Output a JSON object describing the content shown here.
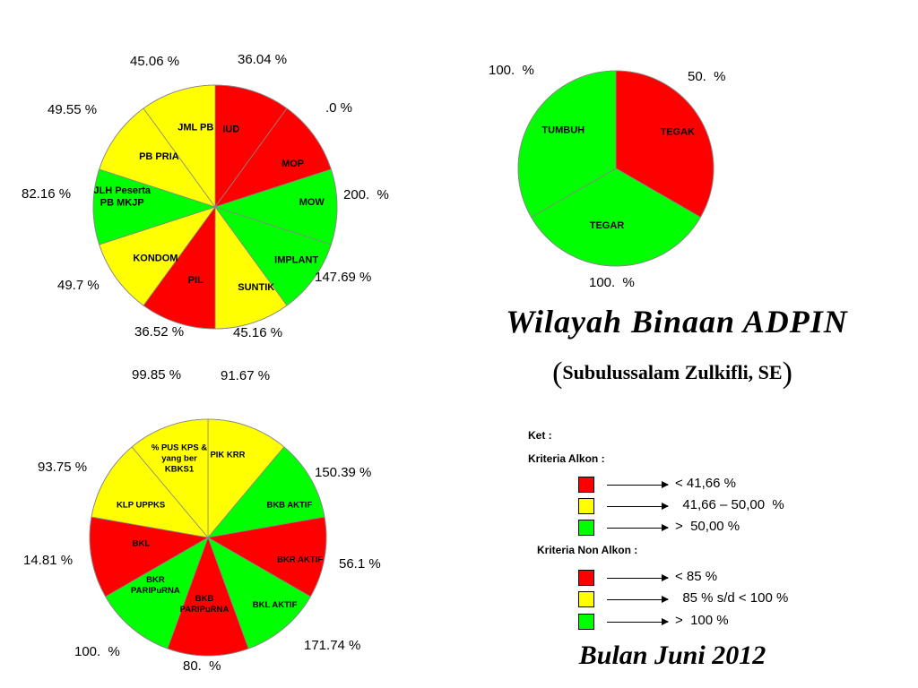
{
  "colors": {
    "red": "#ff0000",
    "yellow": "#ffff00",
    "green": "#00ff00",
    "outline": "#000000",
    "divider": "#888888"
  },
  "chart_data": [
    {
      "type": "pie",
      "title": "",
      "start_angle_deg": 0,
      "slices": [
        {
          "label": "IUD",
          "value": 1,
          "color": "red"
        },
        {
          "label": "MOP",
          "value": 1,
          "color": "red"
        },
        {
          "label": "MOW",
          "value": 1,
          "color": "green"
        },
        {
          "label": "IMPLANT",
          "value": 1,
          "color": "green"
        },
        {
          "label": "SUNTIK",
          "value": 1,
          "color": "yellow"
        },
        {
          "label": "PIL",
          "value": 1,
          "color": "red"
        },
        {
          "label": "KONDOM",
          "value": 1,
          "color": "yellow"
        },
        {
          "label": "JLH Peserta\nPB MKJP",
          "value": 1,
          "color": "green"
        },
        {
          "label": "PB PRIA",
          "value": 1,
          "color": "yellow"
        },
        {
          "label": "JML PB",
          "value": 1,
          "color": "yellow"
        }
      ],
      "percent_labels": [
        "36.04 %",
        ".0 %",
        "200.  %",
        "147.69 %",
        "45.16 %",
        "36.52 %",
        "49.7 %",
        "82.16 %",
        "49.55 %",
        "45.06 %"
      ]
    },
    {
      "type": "pie",
      "title": "",
      "start_angle_deg": 0,
      "slices": [
        {
          "label": "TEGAK",
          "value": 1,
          "color": "red"
        },
        {
          "label": "TEGAR",
          "value": 1,
          "color": "green"
        },
        {
          "label": "TUMBUH",
          "value": 1,
          "color": "green"
        }
      ],
      "percent_labels": [
        "50.  %",
        "100.  %",
        "100.  %"
      ]
    },
    {
      "type": "pie",
      "title": "",
      "start_angle_deg": 0,
      "slices": [
        {
          "label": "PIK KRR",
          "value": 1,
          "color": "yellow"
        },
        {
          "label": "BKB AKTIF",
          "value": 1,
          "color": "green"
        },
        {
          "label": "BKR AKTIF",
          "value": 1,
          "color": "red"
        },
        {
          "label": "BKL AKTIF",
          "value": 1,
          "color": "green"
        },
        {
          "label": "BKB\nPARIPuRNA",
          "value": 1,
          "color": "red"
        },
        {
          "label": "BKR\nPARIPuRNA",
          "value": 1,
          "color": "green"
        },
        {
          "label": "BKL",
          "value": 1,
          "color": "red"
        },
        {
          "label": "KLP UPPKS",
          "value": 1,
          "color": "yellow"
        },
        {
          "label": "% PUS KPS &\nyang ber\nKBKS1",
          "value": 1,
          "color": "yellow"
        }
      ],
      "percent_labels": [
        "99.85 %",
        "91.67 %",
        "150.39 %",
        "56.1 %",
        "171.74 %",
        "80.  %",
        "100.  %",
        "14.81 %",
        "93.75 %"
      ]
    }
  ],
  "title": {
    "main": "Wilayah Binaan ADPIN",
    "sub_open": "(",
    "sub": "Subulussalam Zulkifli, SE",
    "sub_close": ")",
    "date": "Bulan Juni 2012"
  },
  "legend": {
    "ket": "Ket :",
    "alkon_title": "Kriteria Alkon  :",
    "alkon": [
      {
        "color": "red",
        "text": "< 41,66 %"
      },
      {
        "color": "yellow",
        "text": "  41,66 – 50,00  %"
      },
      {
        "color": "green",
        "text": ">  50,00 %"
      }
    ],
    "non_alkon_title": "Kriteria Non Alkon  :",
    "non_alkon": [
      {
        "color": "red",
        "text": "< 85 %"
      },
      {
        "color": "yellow",
        "text": "  85 % s/d < 100 %"
      },
      {
        "color": "green",
        "text": ">  100 %"
      }
    ]
  }
}
